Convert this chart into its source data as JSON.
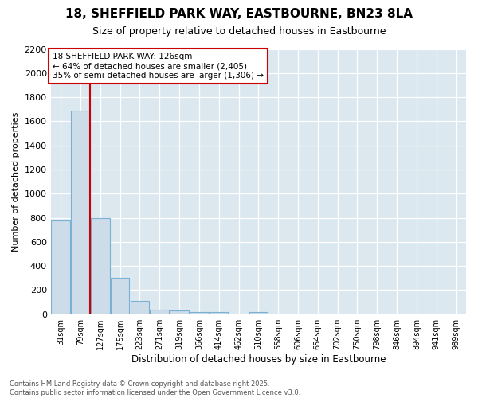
{
  "title_line1": "18, SHEFFIELD PARK WAY, EASTBOURNE, BN23 8LA",
  "title_line2": "Size of property relative to detached houses in Eastbourne",
  "xlabel": "Distribution of detached houses by size in Eastbourne",
  "ylabel": "Number of detached properties",
  "bar_labels": [
    "31sqm",
    "79sqm",
    "127sqm",
    "175sqm",
    "223sqm",
    "271sqm",
    "319sqm",
    "366sqm",
    "414sqm",
    "462sqm",
    "510sqm",
    "558sqm",
    "606sqm",
    "654sqm",
    "702sqm",
    "750sqm",
    "798sqm",
    "846sqm",
    "894sqm",
    "941sqm",
    "989sqm"
  ],
  "bar_values": [
    780,
    1690,
    800,
    300,
    110,
    40,
    30,
    20,
    15,
    0,
    20,
    0,
    0,
    0,
    0,
    0,
    0,
    0,
    0,
    0,
    0
  ],
  "bar_color": "#ccdce8",
  "bar_edge_color": "#7ab0d4",
  "red_line_x": 1.5,
  "marker_color": "#cc0000",
  "annotation_text": "18 SHEFFIELD PARK WAY: 126sqm\n← 64% of detached houses are smaller (2,405)\n35% of semi-detached houses are larger (1,306) →",
  "annotation_box_color": "#ffffff",
  "annotation_box_edge": "#cc0000",
  "ylim": [
    0,
    2200
  ],
  "yticks": [
    0,
    200,
    400,
    600,
    800,
    1000,
    1200,
    1400,
    1600,
    1800,
    2000,
    2200
  ],
  "footer_line1": "Contains HM Land Registry data © Crown copyright and database right 2025.",
  "footer_line2": "Contains public sector information licensed under the Open Government Licence v3.0.",
  "bg_color": "#ffffff",
  "plot_bg_color": "#dce8f0",
  "grid_color": "#ffffff"
}
